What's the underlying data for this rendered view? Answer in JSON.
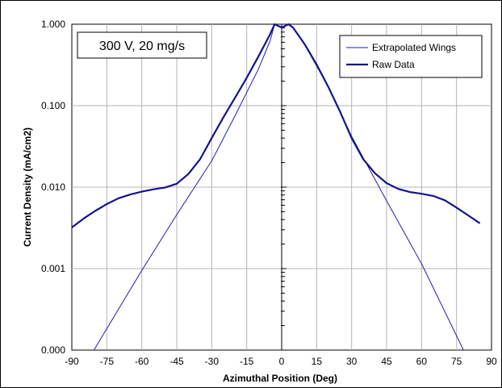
{
  "chart_data": {
    "type": "line",
    "annotation": "300 V, 20 mg/s",
    "xlabel": "Azimuthal Position (Deg)",
    "ylabel": "Current Density (mA/cm2)",
    "xlim": [
      -90,
      90
    ],
    "ylim": [
      0.0001,
      1.0
    ],
    "y_scale": "log",
    "x_ticks": [
      -90,
      -75,
      -60,
      -45,
      -30,
      -15,
      0,
      15,
      30,
      45,
      60,
      75,
      90
    ],
    "x_tick_labels": [
      "-90",
      "-75",
      "-60",
      "-45",
      "-30",
      "-15",
      "0",
      "15",
      "30",
      "45",
      "60",
      "75",
      "90"
    ],
    "y_ticks": [
      0.0001,
      0.001,
      0.01,
      0.1,
      1.0
    ],
    "y_tick_labels": [
      "0.000",
      "0.001",
      "0.010",
      "0.100",
      "1.000"
    ],
    "grid": true,
    "legend_position": "top-right",
    "series": [
      {
        "name": "Extrapolated Wings",
        "color": "#1f1fb0",
        "line_width": "thin",
        "x": [
          -80.5,
          -60,
          -45,
          -30,
          -20,
          -10,
          -5,
          -3,
          0,
          3,
          5,
          10,
          20,
          30,
          45,
          60,
          78
        ],
        "y": [
          0.0001,
          0.00095,
          0.0046,
          0.021,
          0.075,
          0.28,
          0.62,
          1.0,
          0.91,
          1.0,
          0.9,
          0.55,
          0.17,
          0.042,
          0.0068,
          0.00115,
          0.0001
        ]
      },
      {
        "name": "Raw Data",
        "color": "#14148c",
        "line_width": "thick",
        "x": [
          -90,
          -85,
          -80,
          -75,
          -70,
          -65,
          -60,
          -55,
          -50,
          -45,
          -40,
          -35,
          -30,
          -25,
          -20,
          -15,
          -10,
          -5,
          -3,
          0,
          3,
          5,
          10,
          15,
          20,
          25,
          30,
          35,
          40,
          45,
          50,
          55,
          60,
          65,
          70,
          75,
          80,
          85
        ],
        "y": [
          0.0032,
          0.0041,
          0.0051,
          0.0062,
          0.0073,
          0.0081,
          0.0088,
          0.0094,
          0.0099,
          0.011,
          0.0145,
          0.022,
          0.04,
          0.072,
          0.125,
          0.22,
          0.4,
          0.75,
          1.0,
          0.91,
          1.0,
          0.9,
          0.56,
          0.32,
          0.17,
          0.085,
          0.04,
          0.022,
          0.0148,
          0.0112,
          0.0095,
          0.0087,
          0.0083,
          0.0078,
          0.0069,
          0.0056,
          0.0045,
          0.0036
        ]
      }
    ]
  }
}
